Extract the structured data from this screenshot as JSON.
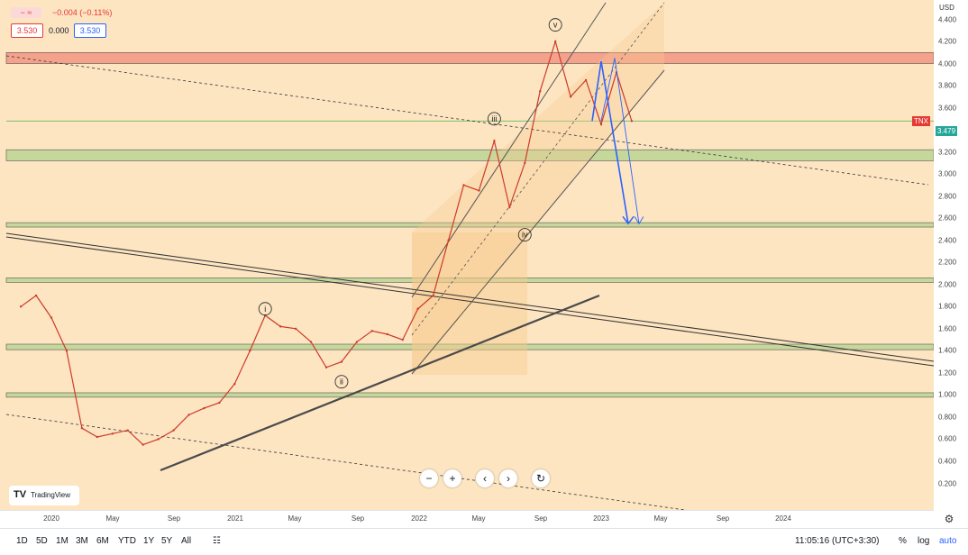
{
  "legend": {
    "change": "−0.004 (−0.11%)",
    "sell": "3.530",
    "spread": "0.000",
    "buy": "3.530"
  },
  "symbol_tag": "TNX",
  "price_tag": "3.479",
  "price_axis_unit": "USD",
  "price_ticks": [
    "4.400",
    "4.200",
    "4.000",
    "3.800",
    "3.600",
    "3.400",
    "3.200",
    "3.000",
    "2.800",
    "2.600",
    "2.400",
    "2.200",
    "2.000",
    "1.800",
    "1.600",
    "1.400",
    "1.200",
    "1.000",
    "0.800",
    "0.600",
    "0.400",
    "0.200"
  ],
  "time_ticks": [
    "2020",
    "May",
    "Sep",
    "2021",
    "May",
    "Sep",
    "2022",
    "May",
    "Sep",
    "2023",
    "May",
    "Sep",
    "2024"
  ],
  "toolbar": {
    "ranges": [
      "1D",
      "5D",
      "1M",
      "3M",
      "6M",
      "YTD",
      "1Y",
      "5Y",
      "All"
    ],
    "clock": "11:05:16 (UTC+3:30)",
    "percent": "%",
    "log": "log",
    "auto": "auto"
  },
  "logo_text": "TradingView",
  "colors": {
    "background": "#fde5c2",
    "support_zone": "#c5d79b",
    "resistance_zone": "#f4a28c",
    "forecast_arrow": "#2962ff",
    "price_bar": "#cc3b2b",
    "trend_line": "#4a4a4a"
  },
  "wave_labels": [
    "i",
    "ii",
    "iii",
    "iv",
    "v"
  ],
  "chart_data": {
    "type": "line",
    "symbol": "TNX",
    "y_axis_unit": "USD",
    "ylim": [
      0.2,
      4.45
    ],
    "x_range": [
      "2019-10",
      "2024-06"
    ],
    "series": [
      {
        "name": "TNX",
        "x": [
          "2019-11",
          "2019-12",
          "2020-01",
          "2020-02",
          "2020-03",
          "2020-04",
          "2020-05",
          "2020-06",
          "2020-07",
          "2020-08",
          "2020-09",
          "2020-10",
          "2020-11",
          "2020-12",
          "2021-01",
          "2021-02",
          "2021-03",
          "2021-04",
          "2021-05",
          "2021-06",
          "2021-07",
          "2021-08",
          "2021-09",
          "2021-10",
          "2021-11",
          "2021-12",
          "2022-01",
          "2022-02",
          "2022-03",
          "2022-04",
          "2022-05",
          "2022-06",
          "2022-07",
          "2022-08",
          "2022-09",
          "2022-10",
          "2022-11",
          "2022-12",
          "2023-01",
          "2023-02",
          "2023-03"
        ],
        "values": [
          1.8,
          1.9,
          1.7,
          1.4,
          0.7,
          0.62,
          0.65,
          0.68,
          0.55,
          0.6,
          0.68,
          0.82,
          0.88,
          0.93,
          1.1,
          1.4,
          1.72,
          1.62,
          1.6,
          1.48,
          1.25,
          1.3,
          1.48,
          1.58,
          1.55,
          1.5,
          1.78,
          1.9,
          2.4,
          2.9,
          2.85,
          3.3,
          2.7,
          3.1,
          3.75,
          4.2,
          3.7,
          3.85,
          3.45,
          3.92,
          3.48
        ]
      }
    ],
    "zones": [
      {
        "kind": "resistance",
        "low": 4.0,
        "high": 4.1
      },
      {
        "kind": "support",
        "low": 3.12,
        "high": 3.22
      },
      {
        "kind": "support",
        "low": 2.52,
        "high": 2.56
      },
      {
        "kind": "support",
        "low": 2.02,
        "high": 2.06
      },
      {
        "kind": "support",
        "low": 1.41,
        "high": 1.46
      },
      {
        "kind": "support",
        "low": 0.98,
        "high": 1.02
      }
    ],
    "horizontal_line": 3.479,
    "wave_points": [
      {
        "label": "i",
        "x": "2021-03",
        "y": 1.78
      },
      {
        "label": "ii",
        "x": "2021-08",
        "y": 1.12
      },
      {
        "label": "iii",
        "x": "2022-06",
        "y": 3.5
      },
      {
        "label": "iv",
        "x": "2022-08",
        "y": 2.45
      },
      {
        "label": "v",
        "x": "2022-10",
        "y": 4.35
      }
    ],
    "forecast": {
      "from": 3.48,
      "to": 2.55
    }
  }
}
